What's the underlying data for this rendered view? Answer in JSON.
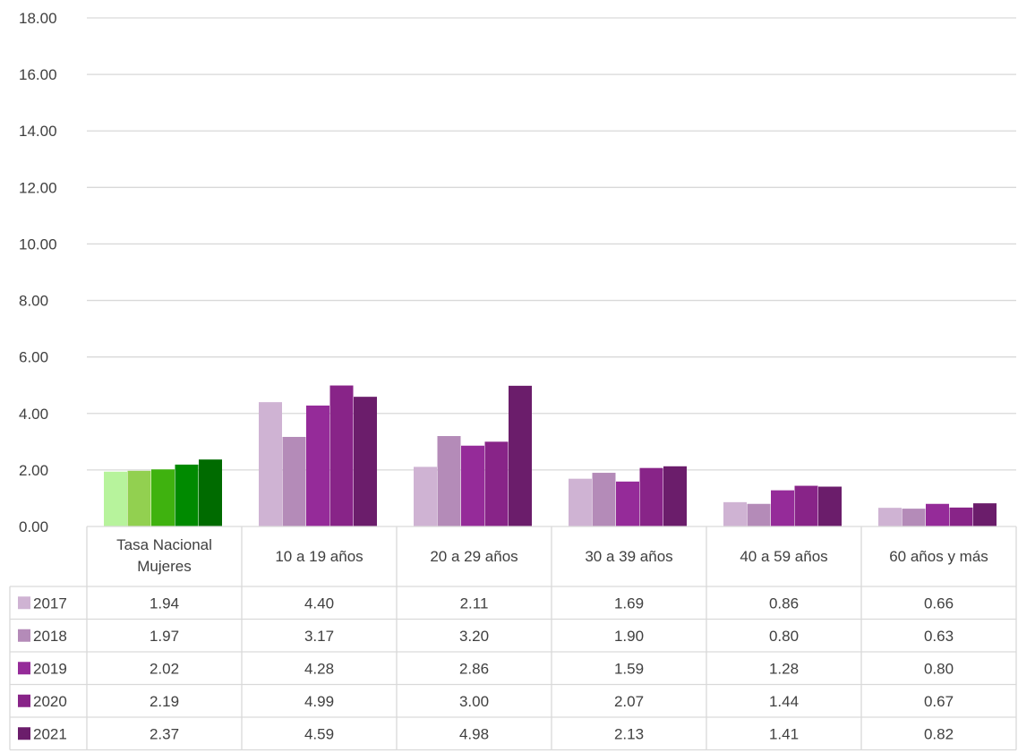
{
  "chart_data": {
    "type": "bar",
    "title": "",
    "xlabel": "",
    "ylabel": "",
    "ylim": [
      0,
      18
    ],
    "yticks": [
      "0.00",
      "2.00",
      "4.00",
      "6.00",
      "8.00",
      "10.00",
      "12.00",
      "14.00",
      "16.00",
      "18.00"
    ],
    "grid": true,
    "legend_placement": "data-table-left",
    "categories": [
      [
        "Tasa Nacional",
        "Mujeres"
      ],
      [
        "10 a 19 años"
      ],
      [
        "20 a 29 años"
      ],
      [
        "30 a 39 años"
      ],
      [
        "40 a 59 años"
      ],
      [
        "60 años y más"
      ]
    ],
    "series": [
      {
        "name": "2017",
        "values": [
          1.94,
          4.4,
          2.11,
          1.69,
          0.86,
          0.66
        ]
      },
      {
        "name": "2018",
        "values": [
          1.97,
          3.17,
          3.2,
          1.9,
          0.8,
          0.63
        ]
      },
      {
        "name": "2019",
        "values": [
          2.02,
          4.28,
          2.86,
          1.59,
          1.28,
          0.8
        ]
      },
      {
        "name": "2020",
        "values": [
          2.19,
          4.99,
          3.0,
          2.07,
          1.44,
          0.67
        ]
      },
      {
        "name": "2021",
        "values": [
          2.37,
          4.59,
          4.98,
          2.13,
          1.41,
          0.82
        ]
      }
    ],
    "table_values": [
      [
        "1.94",
        "4.40",
        "2.11",
        "1.69",
        "0.86",
        "0.66"
      ],
      [
        "1.97",
        "3.17",
        "3.20",
        "1.90",
        "0.80",
        "0.63"
      ],
      [
        "2.02",
        "4.28",
        "2.86",
        "1.59",
        "1.28",
        "0.80"
      ],
      [
        "2.19",
        "4.99",
        "3.00",
        "2.07",
        "1.44",
        "0.67"
      ],
      [
        "2.37",
        "4.59",
        "4.98",
        "2.13",
        "1.41",
        "0.82"
      ]
    ],
    "colors": {
      "series": [
        "#cfb3d3",
        "#b48bb8",
        "#952b99",
        "#882488",
        "#6b1d6b"
      ],
      "first_category_bars": [
        "#b7f39c",
        "#92d050",
        "#3fb20f",
        "#008a00",
        "#006b00"
      ],
      "grid": "#d9d9d9",
      "text": "#404040"
    }
  }
}
